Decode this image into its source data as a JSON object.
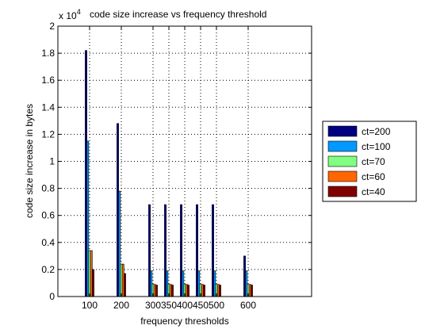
{
  "chart_data": {
    "type": "bar",
    "title": "code size increase vs frequency threshold",
    "xlabel": "frequency thresholds",
    "ylabel": "code size increase in bytes",
    "y_exponent_label": "x 10",
    "y_exponent_power": "4",
    "x_range": [
      0,
      800
    ],
    "ylim": [
      0,
      2
    ],
    "y_ticks": [
      0,
      0.2,
      0.4,
      0.6,
      0.8,
      1,
      1.2,
      1.4,
      1.6,
      1.8,
      2
    ],
    "y_tick_labels": [
      "0",
      "0.2",
      "0.4",
      "0.6",
      "0.8",
      "1",
      "1.2",
      "1.4",
      "1.6",
      "1.8",
      "2"
    ],
    "grid": true,
    "legend_position": "right",
    "categories": [
      "100",
      "200",
      "300",
      "350",
      "400",
      "450",
      "500",
      "600"
    ],
    "x": [
      100,
      200,
      300,
      350,
      400,
      450,
      500,
      600
    ],
    "series": [
      {
        "name": "ct=200",
        "color": "#000080",
        "values": [
          1.82,
          1.28,
          0.68,
          0.68,
          0.68,
          0.68,
          0.68,
          0.3
        ]
      },
      {
        "name": "ct=100",
        "color": "#0099ff",
        "values": [
          1.15,
          0.78,
          0.19,
          0.19,
          0.19,
          0.19,
          0.19,
          0.19
        ]
      },
      {
        "name": "ct=70",
        "color": "#80ff80",
        "values": [
          0.34,
          0.24,
          0.09,
          0.09,
          0.09,
          0.09,
          0.09,
          0.09
        ]
      },
      {
        "name": "ct=60",
        "color": "#ff6600",
        "values": [
          0.34,
          0.24,
          0.09,
          0.09,
          0.09,
          0.09,
          0.09,
          0.09
        ]
      },
      {
        "name": "ct=40",
        "color": "#800000",
        "values": [
          0.2,
          0.17,
          0.085,
          0.085,
          0.085,
          0.085,
          0.085,
          0.085
        ]
      }
    ]
  }
}
